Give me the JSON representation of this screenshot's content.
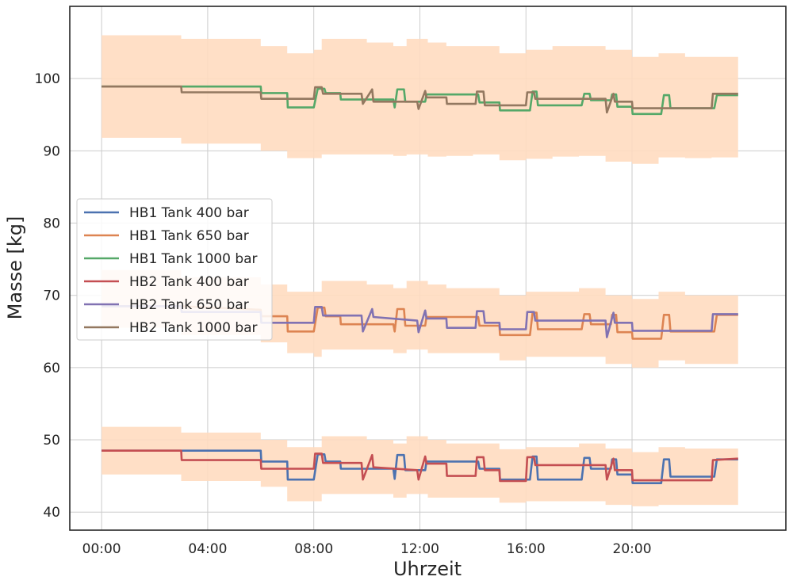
{
  "chart_data": {
    "type": "line",
    "title": "",
    "xlabel": "Uhrzeit",
    "ylabel": "Masse [kg]",
    "x_unit": "hours",
    "xlim": [
      -1.2,
      25.8
    ],
    "ylim": [
      37.5,
      110
    ],
    "x_ticks": [
      {
        "value": 0,
        "label": "00:00"
      },
      {
        "value": 4,
        "label": "04:00"
      },
      {
        "value": 8,
        "label": "08:00"
      },
      {
        "value": 12,
        "label": "12:00"
      },
      {
        "value": 16,
        "label": "16:00"
      },
      {
        "value": 20,
        "label": "20:00"
      }
    ],
    "y_ticks": [
      {
        "value": 40,
        "label": "40"
      },
      {
        "value": 50,
        "label": "50"
      },
      {
        "value": 60,
        "label": "60"
      },
      {
        "value": 70,
        "label": "70"
      },
      {
        "value": 80,
        "label": "80"
      },
      {
        "value": 90,
        "label": "90"
      },
      {
        "value": 100,
        "label": "100"
      }
    ],
    "grid": true,
    "legend_position": "center-left",
    "band_color": "#ffdcc0",
    "bands": [
      {
        "name_ref": "1000 bar band",
        "x": [
          0,
          3,
          6,
          7,
          8,
          8.3,
          9,
          10,
          11,
          11.5,
          12.3,
          13,
          14,
          15,
          16,
          17,
          18,
          19,
          20,
          21,
          22,
          23,
          24
        ],
        "low": [
          91.8,
          91,
          90,
          89,
          89,
          89.5,
          89.5,
          89.5,
          89.3,
          89.5,
          89.2,
          89.3,
          89.5,
          88.7,
          88.9,
          89.2,
          89.3,
          88.5,
          88.2,
          89.1,
          89,
          89.1,
          90.7
        ],
        "high": [
          106,
          105.5,
          104.5,
          103.5,
          104,
          105.5,
          105.5,
          105,
          104.5,
          105.5,
          105,
          104.5,
          104.5,
          103.5,
          104,
          104.5,
          104.5,
          104,
          103,
          103.5,
          103,
          103,
          104.8
        ]
      },
      {
        "name_ref": "650 bar band",
        "x": [
          0,
          3,
          6,
          7,
          8,
          8.3,
          9,
          10,
          11,
          11.5,
          12.3,
          13,
          14,
          15,
          16,
          17,
          18,
          19,
          20,
          21,
          22,
          23,
          24
        ],
        "low": [
          65.5,
          64.5,
          63.5,
          62,
          61.5,
          62.5,
          62.5,
          62.5,
          62,
          62.5,
          62,
          62,
          62,
          61,
          61.5,
          61.5,
          61.5,
          60.5,
          60,
          61,
          60.5,
          60.5,
          62
        ],
        "high": [
          73.5,
          72.5,
          71.5,
          70.5,
          70.5,
          72,
          72,
          71.5,
          71,
          72,
          71.5,
          71,
          71,
          70,
          70.5,
          70.5,
          71,
          70,
          69.5,
          70.5,
          70,
          70,
          72
        ]
      },
      {
        "name_ref": "400 bar band",
        "x": [
          0,
          3,
          6,
          7,
          8,
          8.3,
          9,
          10,
          11,
          11.5,
          12.3,
          13,
          14,
          15,
          16,
          17,
          18,
          19,
          20,
          21,
          22,
          23,
          24
        ],
        "low": [
          45.2,
          44.3,
          43.5,
          41.5,
          41.5,
          42.5,
          42.5,
          42.5,
          42,
          42.5,
          42,
          42,
          42,
          41.3,
          41.5,
          41.5,
          41.5,
          41,
          40.8,
          41,
          41,
          41,
          43.5
        ],
        "high": [
          51.8,
          51,
          50,
          49,
          49,
          50.5,
          50.5,
          50,
          49.5,
          50.5,
          50,
          49.5,
          49.5,
          48.7,
          49,
          49,
          49.5,
          48.8,
          48.3,
          49,
          48.8,
          48.8,
          50.5
        ]
      }
    ],
    "series": [
      {
        "name": "HB1 Tank 400 bar",
        "color": "#4c72b0",
        "x": [
          0,
          3,
          6,
          6.02,
          7,
          7.02,
          8,
          8.15,
          8.4,
          8.45,
          9,
          9.02,
          10.5,
          10.52,
          11,
          11.05,
          11.15,
          11.3,
          11.4,
          11.45,
          12.2,
          12.25,
          14.2,
          14.25,
          15,
          15.02,
          16.15,
          16.25,
          16.4,
          16.45,
          18.1,
          18.2,
          18.4,
          18.45,
          19.2,
          19.25,
          19.4,
          19.45,
          20,
          20.02,
          21.1,
          21.2,
          21.4,
          21.45,
          23.1,
          23.2,
          24
        ],
        "y": [
          48.5,
          48.5,
          48.5,
          47,
          47,
          44.5,
          44.5,
          48,
          48,
          47,
          47,
          46,
          46,
          46,
          46,
          44.6,
          47.9,
          47.9,
          47.9,
          45.8,
          45.8,
          47,
          47,
          46,
          46,
          44.5,
          44.5,
          47.7,
          47.7,
          44.5,
          44.5,
          47.5,
          47.5,
          46,
          46,
          47.3,
          47.3,
          45.2,
          45.2,
          44,
          44,
          47.3,
          47.3,
          44.9,
          44.9,
          47.3,
          47.3
        ]
      },
      {
        "name": "HB1 Tank 650 bar",
        "color": "#dd8452",
        "x": [
          0,
          3,
          6,
          6.02,
          7,
          7.02,
          8,
          8.15,
          8.4,
          8.45,
          9,
          9.02,
          10.5,
          10.52,
          11,
          11.05,
          11.15,
          11.3,
          11.4,
          11.45,
          12.2,
          12.25,
          14.2,
          14.25,
          15,
          15.02,
          16.15,
          16.25,
          16.4,
          16.45,
          18.1,
          18.2,
          18.4,
          18.45,
          19.2,
          19.25,
          19.4,
          19.45,
          20,
          20.02,
          21.1,
          21.2,
          21.4,
          21.45,
          23.1,
          23.2,
          24
        ],
        "y": [
          68.5,
          68.5,
          68,
          67.1,
          67.1,
          65,
          65,
          68.3,
          68.3,
          67.1,
          67.1,
          66,
          66,
          66,
          66,
          65,
          68.1,
          68.1,
          68.1,
          65.8,
          65.8,
          67,
          67,
          65.8,
          65.8,
          64.5,
          64.5,
          67.6,
          67.6,
          65.3,
          65.3,
          67.4,
          67.4,
          66,
          66,
          67.3,
          67.3,
          64.9,
          64.9,
          64,
          64,
          67.3,
          67.3,
          65,
          65,
          67.3,
          67.3
        ]
      },
      {
        "name": "HB1 Tank 1000 bar",
        "color": "#55a868",
        "x": [
          0,
          3,
          6,
          6.02,
          7,
          7.02,
          8,
          8.15,
          8.4,
          8.45,
          9,
          9.02,
          10.5,
          10.52,
          11,
          11.05,
          11.15,
          11.3,
          11.4,
          11.45,
          12.2,
          12.25,
          14.2,
          14.25,
          15,
          15.02,
          16.15,
          16.25,
          16.4,
          16.45,
          18.1,
          18.2,
          18.4,
          18.45,
          19.2,
          19.25,
          19.4,
          19.45,
          20,
          20.02,
          21.1,
          21.2,
          21.4,
          21.45,
          23.1,
          23.2,
          24
        ],
        "y": [
          98.9,
          98.9,
          98.9,
          98,
          98,
          96,
          96,
          98.6,
          98.6,
          98,
          98,
          97.1,
          97.1,
          97.1,
          97.1,
          96,
          98.5,
          98.5,
          98.5,
          96.8,
          96.8,
          97.8,
          97.8,
          96.7,
          96.7,
          95.6,
          95.6,
          98.2,
          98.2,
          96.3,
          96.3,
          97.9,
          97.9,
          97,
          97,
          97.8,
          97.8,
          96.1,
          96.1,
          95.1,
          95.1,
          97.7,
          97.7,
          95.9,
          95.9,
          97.7,
          97.7
        ]
      },
      {
        "name": "HB2 Tank 400 bar",
        "color": "#c44e52",
        "x": [
          0,
          3,
          3.02,
          6,
          6.02,
          8,
          8.05,
          8.3,
          8.35,
          9.8,
          9.85,
          10.2,
          10.25,
          11.9,
          11.95,
          12.2,
          12.25,
          13,
          13.02,
          14.1,
          14.15,
          14.4,
          14.45,
          15,
          15.02,
          16,
          16.05,
          16.3,
          16.35,
          19,
          19.05,
          19.3,
          19.35,
          20,
          20.02,
          23,
          23.05,
          24
        ],
        "y": [
          48.5,
          48.5,
          47.2,
          47.2,
          46,
          46,
          48.1,
          48.1,
          46.8,
          46.8,
          44.5,
          47.9,
          46.2,
          45.8,
          44.5,
          47.7,
          46.7,
          46.7,
          45,
          45,
          47.6,
          47.6,
          45.8,
          45.8,
          44.3,
          44.3,
          47.6,
          47.6,
          46.5,
          46.5,
          44.5,
          47.4,
          45.8,
          45.8,
          44.4,
          44.4,
          47.2,
          47.4
        ]
      },
      {
        "name": "HB2 Tank 650 bar",
        "color": "#8172b2",
        "x": [
          0,
          3,
          3.02,
          6,
          6.02,
          8,
          8.05,
          8.3,
          8.35,
          9.8,
          9.85,
          10.2,
          10.25,
          11.9,
          11.95,
          12.2,
          12.25,
          13,
          13.02,
          14.1,
          14.15,
          14.4,
          14.45,
          15,
          15.02,
          16,
          16.05,
          16.3,
          16.35,
          19,
          19.05,
          19.3,
          19.35,
          20,
          20.02,
          23,
          23.05,
          24
        ],
        "y": [
          68.5,
          68.5,
          67.7,
          67.7,
          66.2,
          66.2,
          68.4,
          68.4,
          67.2,
          67.2,
          65,
          68.1,
          67,
          66.5,
          64.9,
          67.9,
          66.8,
          66.8,
          65.5,
          65.5,
          67.8,
          67.8,
          66.2,
          66.2,
          65.3,
          65.3,
          67.7,
          67.7,
          66.5,
          66.5,
          64.2,
          67.6,
          66.2,
          66.2,
          65.1,
          65.1,
          67.4,
          67.4
        ]
      },
      {
        "name": "HB2 Tank 1000 bar",
        "color": "#937860",
        "x": [
          0,
          3,
          3.02,
          6,
          6.02,
          8,
          8.05,
          8.3,
          8.35,
          9.8,
          9.85,
          10.2,
          10.25,
          11.9,
          11.95,
          12.2,
          12.25,
          13,
          13.02,
          14.1,
          14.15,
          14.4,
          14.45,
          15,
          15.02,
          16,
          16.05,
          16.3,
          16.35,
          19,
          19.05,
          19.3,
          19.35,
          20,
          20.02,
          23,
          23.05,
          24
        ],
        "y": [
          98.9,
          98.9,
          98.1,
          98.1,
          97.2,
          97.2,
          98.8,
          98.8,
          97.9,
          97.9,
          96.5,
          98.5,
          96.8,
          96.8,
          95.8,
          98.3,
          97.4,
          97.4,
          96.5,
          96.5,
          98.2,
          98.2,
          96.3,
          96.3,
          96.3,
          96.3,
          98.1,
          98.1,
          97.2,
          97.2,
          95.3,
          97.9,
          96.8,
          96.8,
          95.9,
          95.9,
          97.9,
          97.9
        ]
      }
    ]
  }
}
